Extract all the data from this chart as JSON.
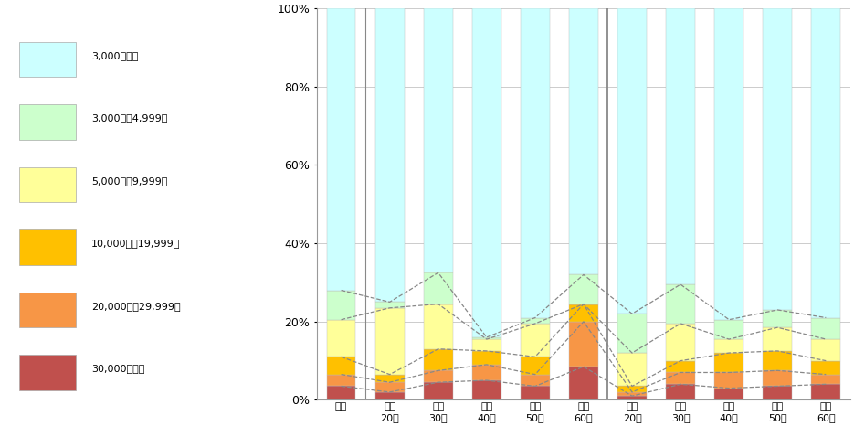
{
  "categories": [
    "全体",
    "男性\n20代",
    "男性\n30代",
    "男性\n40代",
    "男性\n50代",
    "男性\n60代",
    "女性\n20代",
    "女性\n30代",
    "女性\n40代",
    "女性\n50代",
    "女性\n60代"
  ],
  "series": [
    {
      "label": "30,000円以上",
      "color": "#C0504D",
      "values": [
        3.5,
        2.0,
        4.5,
        5.0,
        3.5,
        8.5,
        1.0,
        4.0,
        3.0,
        3.5,
        4.0
      ]
    },
    {
      "label": "20,000円～29,999円",
      "color": "#F79646",
      "values": [
        3.0,
        2.5,
        3.0,
        4.0,
        3.0,
        11.5,
        1.0,
        3.0,
        4.0,
        4.0,
        2.5
      ]
    },
    {
      "label": "10,000円～19,999円",
      "color": "#FFC000",
      "values": [
        4.5,
        2.0,
        5.5,
        3.5,
        4.5,
        4.5,
        1.5,
        3.0,
        5.0,
        5.0,
        3.5
      ]
    },
    {
      "label": "5,000円～9,999円",
      "color": "#FFFF99",
      "values": [
        9.5,
        17.0,
        11.5,
        3.0,
        8.5,
        0.0,
        8.5,
        9.5,
        3.5,
        6.0,
        5.5
      ]
    },
    {
      "label": "3,000円～4,999円",
      "color": "#CCFFCC",
      "values": [
        7.5,
        1.5,
        8.0,
        0.5,
        1.5,
        7.5,
        10.0,
        10.0,
        5.0,
        4.5,
        5.5
      ]
    },
    {
      "label": "3,000円未満",
      "color": "#CCFFFF",
      "values": [
        72.0,
        75.0,
        67.5,
        84.0,
        79.0,
        68.0,
        78.0,
        70.5,
        79.5,
        77.0,
        79.0
      ]
    }
  ],
  "figsize": [
    9.35,
    4.66
  ],
  "dpi": 100,
  "bg_color": "#FFFFFF"
}
